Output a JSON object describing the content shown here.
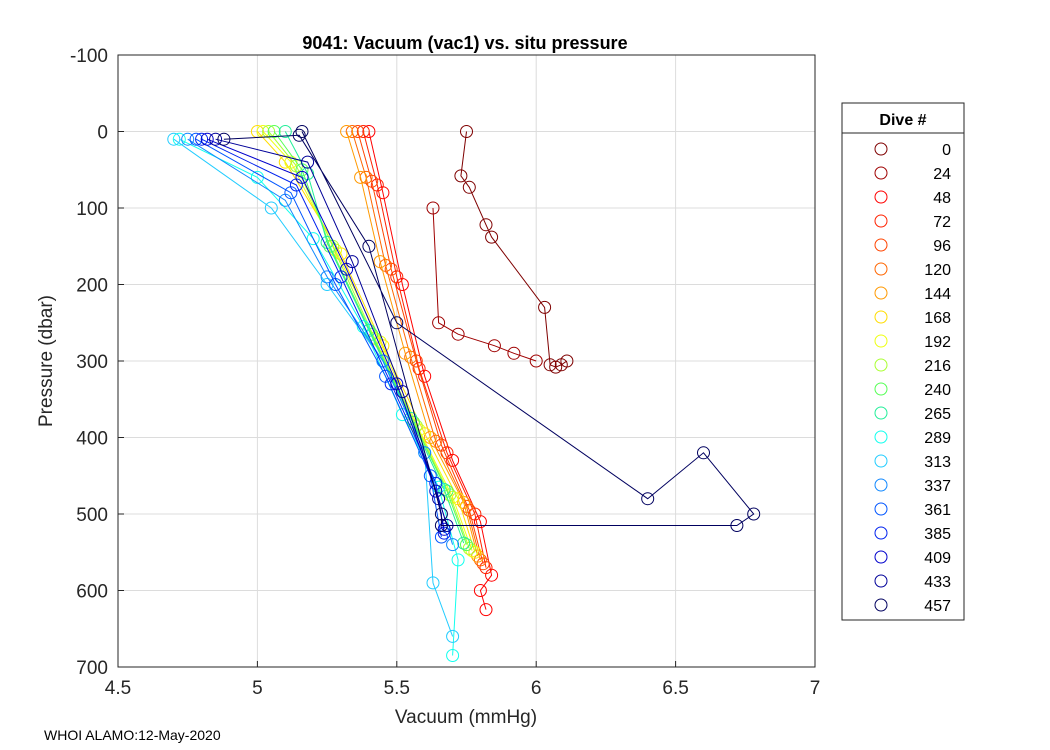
{
  "chart_data": {
    "type": "scatter",
    "title": "9041: Vacuum (vac1) vs. situ pressure",
    "xlabel": "Vacuum (mmHg)",
    "ylabel": "Pressure (dbar)",
    "xlim": [
      4.5,
      7
    ],
    "ylim": [
      -100,
      700
    ],
    "y_reversed": true,
    "xticks": [
      "4.5",
      "5",
      "5.5",
      "6",
      "6.5",
      "7"
    ],
    "yticks": [
      "-100",
      "0",
      "100",
      "200",
      "300",
      "400",
      "500",
      "600",
      "700"
    ],
    "xtick_values": [
      4.5,
      5,
      5.5,
      6,
      6.5,
      7
    ],
    "ytick_values": [
      -100,
      0,
      100,
      200,
      300,
      400,
      500,
      600,
      700
    ],
    "grid": true,
    "legend_title": "Dive #",
    "legend_position": "right",
    "footer": "WHOI ALAMO:12-May-2020",
    "series": [
      {
        "name": "0",
        "color": "#7f0000",
        "x": [
          5.75,
          5.73,
          5.76,
          5.82,
          5.84,
          6.03,
          6.05,
          6.07,
          6.09,
          6.11
        ],
        "y": [
          0,
          58,
          73,
          122,
          138,
          230,
          305,
          308,
          305,
          300
        ]
      },
      {
        "name": "24",
        "color": "#9f0000",
        "x": [
          5.63,
          5.65,
          5.72,
          5.85,
          5.92,
          6.0
        ],
        "y": [
          100,
          250,
          265,
          280,
          290,
          300
        ]
      },
      {
        "name": "48",
        "color": "#ff0000",
        "x": [
          5.4,
          5.45,
          5.52,
          5.6,
          5.7,
          5.8,
          5.84,
          5.8,
          5.82
        ],
        "y": [
          0,
          80,
          200,
          320,
          430,
          510,
          580,
          600,
          625
        ]
      },
      {
        "name": "72",
        "color": "#ff2200",
        "x": [
          5.38,
          5.43,
          5.5,
          5.58,
          5.68,
          5.78,
          5.82
        ],
        "y": [
          0,
          70,
          190,
          310,
          420,
          500,
          570
        ]
      },
      {
        "name": "96",
        "color": "#ff4400",
        "x": [
          5.36,
          5.41,
          5.48,
          5.57,
          5.66,
          5.76,
          5.81
        ],
        "y": [
          0,
          65,
          180,
          300,
          410,
          495,
          565
        ]
      },
      {
        "name": "120",
        "color": "#ff6600",
        "x": [
          5.34,
          5.39,
          5.46,
          5.55,
          5.64,
          5.75,
          5.8
        ],
        "y": [
          0,
          60,
          175,
          295,
          405,
          490,
          560
        ]
      },
      {
        "name": "144",
        "color": "#ff9900",
        "x": [
          5.32,
          5.37,
          5.44,
          5.53,
          5.62,
          5.74,
          5.79
        ],
        "y": [
          0,
          60,
          170,
          290,
          400,
          485,
          555
        ]
      },
      {
        "name": "168",
        "color": "#ffdd00",
        "x": [
          5.0,
          5.1,
          5.3,
          5.45,
          5.6,
          5.72,
          5.78
        ],
        "y": [
          0,
          40,
          160,
          280,
          395,
          480,
          550
        ]
      },
      {
        "name": "192",
        "color": "#eeff11",
        "x": [
          5.02,
          5.12,
          5.28,
          5.44,
          5.58,
          5.7,
          5.77
        ],
        "y": [
          0,
          40,
          155,
          275,
          390,
          478,
          548
        ]
      },
      {
        "name": "216",
        "color": "#aaff33",
        "x": [
          5.04,
          5.14,
          5.27,
          5.42,
          5.57,
          5.69,
          5.76
        ],
        "y": [
          0,
          45,
          150,
          270,
          385,
          475,
          545
        ]
      },
      {
        "name": "240",
        "color": "#55ff55",
        "x": [
          5.06,
          5.16,
          5.26,
          5.41,
          5.56,
          5.68,
          5.75
        ],
        "y": [
          0,
          50,
          150,
          265,
          380,
          470,
          540
        ]
      },
      {
        "name": "265",
        "color": "#22ee99",
        "x": [
          5.1,
          5.18,
          5.25,
          5.4,
          5.55,
          5.67,
          5.74
        ],
        "y": [
          0,
          55,
          145,
          260,
          375,
          468,
          538
        ]
      },
      {
        "name": "289",
        "color": "#11ffee",
        "x": [
          4.72,
          5.0,
          5.2,
          5.38,
          5.52,
          5.65,
          5.72,
          5.7
        ],
        "y": [
          10,
          60,
          140,
          255,
          370,
          465,
          560,
          685
        ]
      },
      {
        "name": "313",
        "color": "#22ccff",
        "x": [
          4.7,
          5.05,
          5.25,
          5.45,
          5.6,
          5.63,
          5.7
        ],
        "y": [
          10,
          100,
          200,
          300,
          420,
          590,
          660
        ]
      },
      {
        "name": "337",
        "color": "#1188ff",
        "x": [
          4.75,
          5.1,
          5.25,
          5.45,
          5.6,
          5.7
        ],
        "y": [
          10,
          90,
          190,
          300,
          420,
          540
        ]
      },
      {
        "name": "361",
        "color": "#0055ff",
        "x": [
          4.78,
          5.12,
          5.28,
          5.46,
          5.62,
          5.66
        ],
        "y": [
          10,
          80,
          200,
          320,
          450,
          530
        ]
      },
      {
        "name": "385",
        "color": "#0022ee",
        "x": [
          4.8,
          5.14,
          5.3,
          5.48,
          5.64,
          5.67
        ],
        "y": [
          10,
          70,
          190,
          330,
          460,
          525
        ]
      },
      {
        "name": "409",
        "color": "#0000cc",
        "x": [
          4.82,
          5.16,
          5.32,
          5.5,
          5.64,
          5.67
        ],
        "y": [
          10,
          60,
          180,
          330,
          470,
          520
        ]
      },
      {
        "name": "433",
        "color": "#000099",
        "x": [
          4.85,
          5.18,
          5.34,
          5.52,
          5.65,
          5.68
        ],
        "y": [
          10,
          40,
          170,
          340,
          480,
          515
        ]
      },
      {
        "name": "457",
        "color": "#00005f",
        "x": [
          4.88,
          5.15,
          5.4,
          5.66,
          5.66,
          6.72,
          6.78,
          6.6,
          6.4,
          5.5,
          5.16
        ],
        "y": [
          10,
          5,
          150,
          500,
          515,
          515,
          500,
          420,
          480,
          250,
          0
        ]
      }
    ]
  }
}
